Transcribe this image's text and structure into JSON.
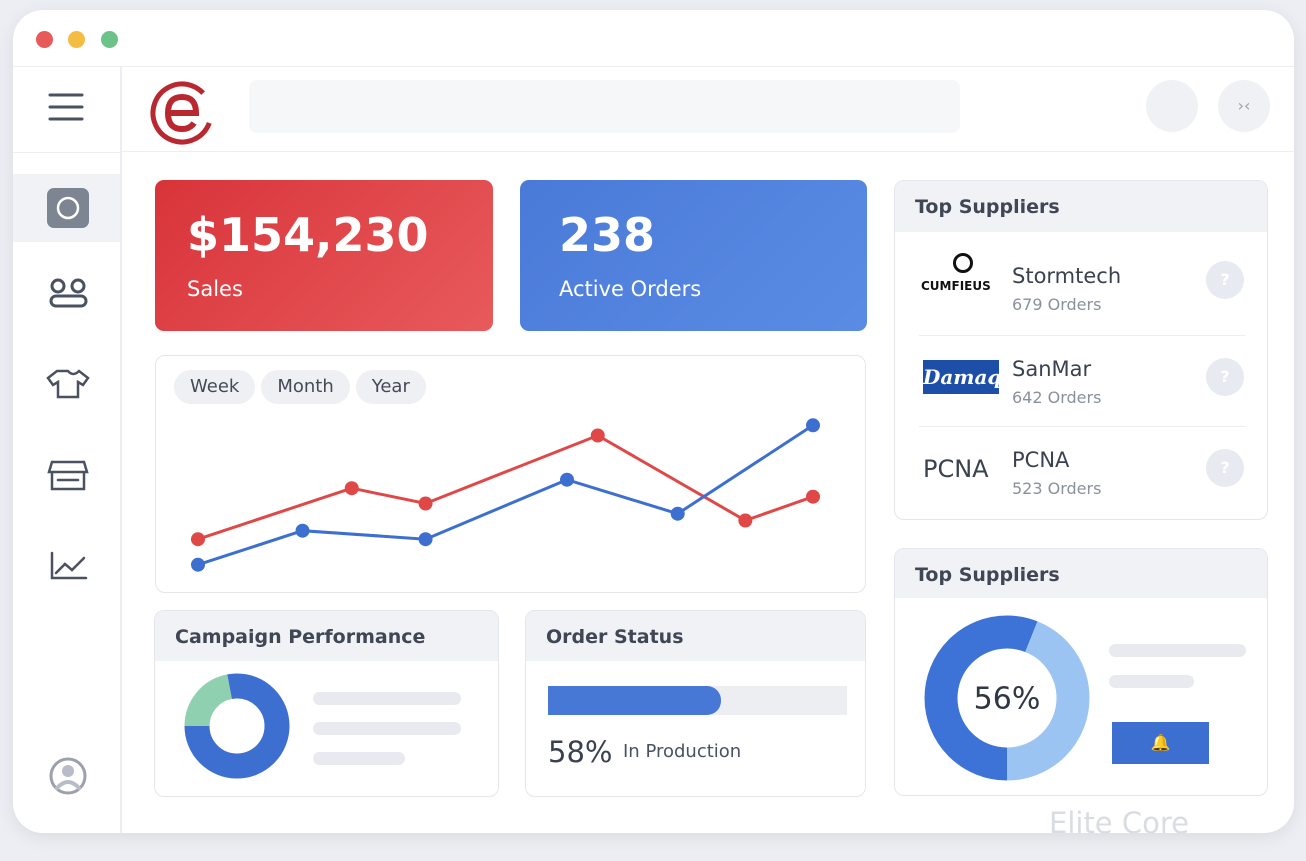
{
  "cards": [
    {
      "value": "$154,230",
      "label": "Sales"
    },
    {
      "value": "238",
      "label": "Active Orders"
    }
  ],
  "chart_data": [
    {
      "type": "line",
      "tabs": [
        "Week",
        "Month",
        "Year"
      ],
      "xlim": [
        0,
        100
      ],
      "ylim": [
        0,
        100
      ],
      "series": [
        {
          "color": "#e04848",
          "x": [
            0,
            25,
            37,
            65,
            89,
            100
          ],
          "values": [
            24,
            54,
            45,
            85,
            35,
            49
          ]
        },
        {
          "color": "#3d6fd1",
          "x": [
            0,
            17,
            37,
            60,
            78,
            100
          ],
          "values": [
            9,
            29,
            24,
            59,
            39,
            91
          ]
        }
      ]
    },
    {
      "type": "pie",
      "title": "Campaign Performance",
      "values": [
        22,
        78
      ],
      "colors": [
        "#8fd0b0",
        "#3d6fd1"
      ]
    },
    {
      "type": "pie",
      "title": "Top Suppliers",
      "values": [
        56,
        44
      ],
      "value_labels": [
        "56%",
        null
      ],
      "colors": [
        "#3d73d6",
        "#9cc4f2"
      ]
    }
  ],
  "top_suppliers": {
    "title": "Top Suppliers",
    "items": [
      {
        "logo": "CUMFIEUS",
        "name": "Stormtech",
        "orders": "679 Orders"
      },
      {
        "logo": "Damaq",
        "name": "SanMar",
        "orders": "642 Orders"
      },
      {
        "logo": "PCNA",
        "name": "PCNA",
        "orders": "523 Orders"
      }
    ]
  },
  "order_status": {
    "title": "Order Status",
    "progress": {
      "value": 58,
      "label": "58%"
    },
    "status": "In Production"
  },
  "brand": "Elite Core"
}
